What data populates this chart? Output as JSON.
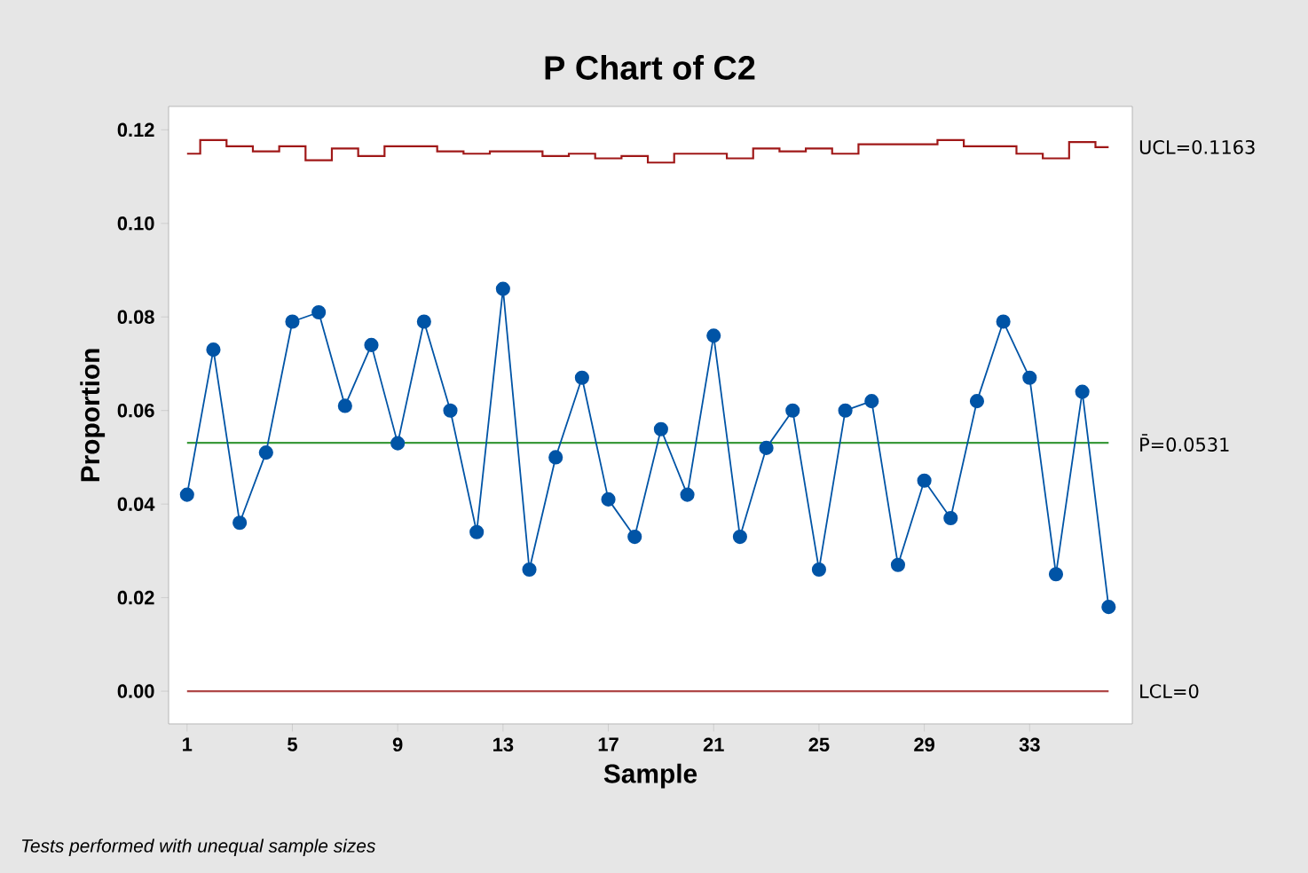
{
  "chart_data": {
    "type": "line",
    "title": "P Chart of C2",
    "xlabel": "Sample",
    "ylabel": "Proportion",
    "x": [
      1,
      2,
      3,
      4,
      5,
      6,
      7,
      8,
      9,
      10,
      11,
      12,
      13,
      14,
      15,
      16,
      17,
      18,
      19,
      20,
      21,
      22,
      23,
      24,
      25,
      26,
      27,
      28,
      29,
      30,
      31,
      32,
      33,
      34,
      35,
      36
    ],
    "series": [
      {
        "color": "#0054a6",
        "values": [
          0.042,
          0.073,
          0.036,
          0.051,
          0.079,
          0.081,
          0.061,
          0.074,
          0.053,
          0.079,
          0.06,
          0.034,
          0.086,
          0.026,
          0.05,
          0.067,
          0.041,
          0.033,
          0.056,
          0.042,
          0.076,
          0.033,
          0.052,
          0.06,
          0.026,
          0.06,
          0.062,
          0.027,
          0.045,
          0.037,
          0.062,
          0.079,
          0.067,
          0.025,
          0.064,
          0.018
        ]
      },
      {
        "type": "step",
        "marker": "none",
        "name": "UCL=0.1163",
        "color": "#a01818",
        "values": [
          0.1149,
          0.1178,
          0.1165,
          0.1154,
          0.1165,
          0.1135,
          0.116,
          0.1144,
          0.1165,
          0.1165,
          0.1154,
          0.1149,
          0.1154,
          0.1154,
          0.1144,
          0.1149,
          0.1139,
          0.1144,
          0.113,
          0.1149,
          0.1149,
          0.1139,
          0.116,
          0.1154,
          0.116,
          0.1149,
          0.1169,
          0.1169,
          0.1169,
          0.1178,
          0.1165,
          0.1165,
          0.1149,
          0.1139,
          0.1174,
          0.1163
        ]
      }
    ],
    "ref_lines": [
      {
        "axis": "y",
        "value": 0.0531,
        "label": "P̄=0.0531",
        "color": "#3c9a3c",
        "line_style": "solid"
      },
      {
        "axis": "y",
        "value": 0,
        "label": "LCL=0",
        "color": "#b04848",
        "line_style": "solid"
      }
    ],
    "xlim": [
      0.3,
      36.9
    ],
    "xticks": [
      1,
      5,
      9,
      13,
      17,
      21,
      25,
      29,
      33
    ],
    "ylim": [
      -0.007,
      0.125
    ],
    "yticks": [
      {
        "value": 0,
        "label": "0.00"
      },
      {
        "value": 0.02,
        "label": "0.02"
      },
      {
        "value": 0.04,
        "label": "0.04"
      },
      {
        "value": 0.06,
        "label": "0.06"
      },
      {
        "value": 0.08,
        "label": "0.08"
      },
      {
        "value": 0.1,
        "label": "0.10"
      },
      {
        "value": 0.12,
        "label": "0.12"
      }
    ],
    "marker": "circle",
    "grid": false,
    "annotations": [
      "Tests performed with unequal sample sizes"
    ]
  }
}
